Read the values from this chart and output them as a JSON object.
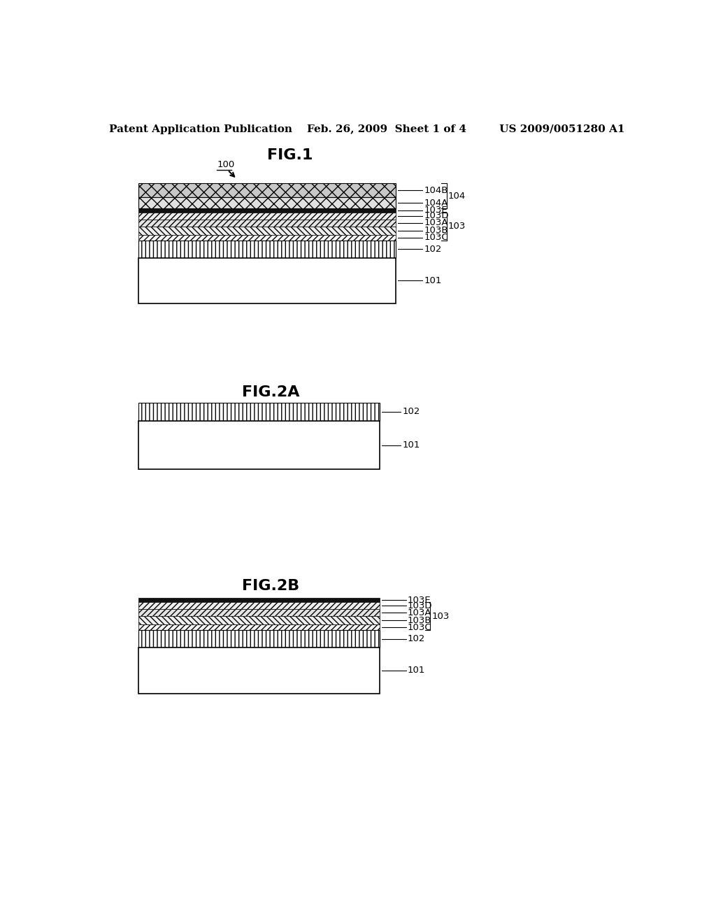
{
  "bg_color": "#ffffff",
  "header_text": "Patent Application Publication    Feb. 26, 2009  Sheet 1 of 4         US 2009/0051280 A1",
  "header_fontsize": 11,
  "fig1_title": "FIG.1",
  "fig2a_title": "FIG.2A",
  "fig2b_title": "FIG.2B",
  "label_fontsize": 9.5,
  "title_fontsize": 16
}
